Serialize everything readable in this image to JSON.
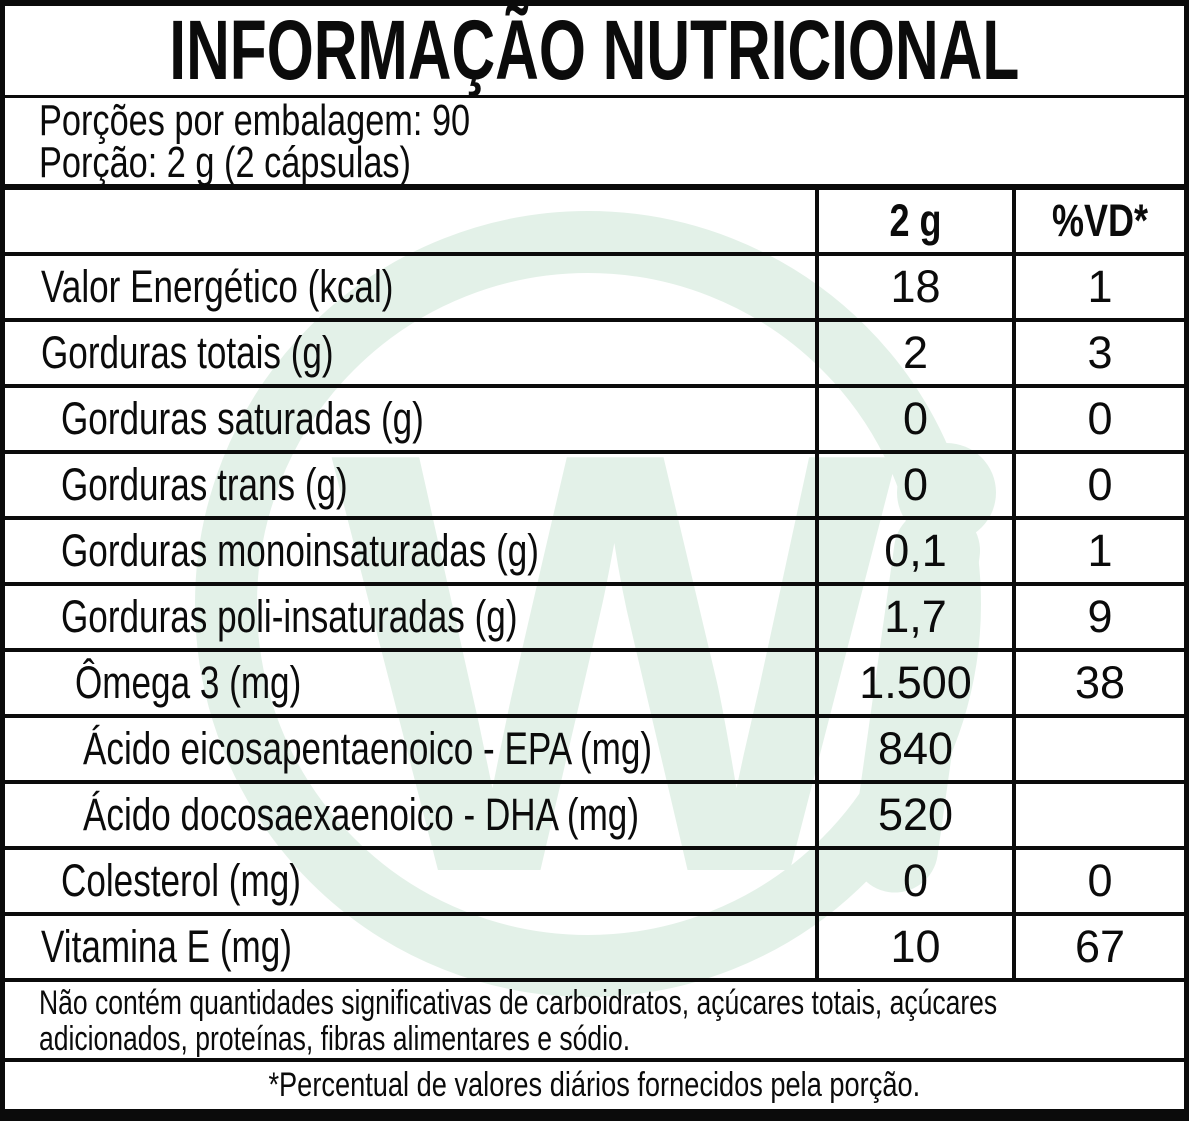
{
  "title": "INFORMAÇÃO NUTRICIONAL",
  "serving_info": {
    "servings_per_package": "Porções por embalagem: 90",
    "serving_size": "Porção: 2 g (2 cápsulas)"
  },
  "table": {
    "columns": [
      "",
      "2 g",
      "%VD*"
    ],
    "rows": [
      {
        "label": "Valor Energético (kcal)",
        "amount": "18",
        "vd": "1",
        "indent": 0
      },
      {
        "label": "Gorduras totais (g)",
        "amount": "2",
        "vd": "3",
        "indent": 0
      },
      {
        "label": "Gorduras saturadas (g)",
        "amount": "0",
        "vd": "0",
        "indent": 1
      },
      {
        "label": "Gorduras trans (g)",
        "amount": "0",
        "vd": "0",
        "indent": 1
      },
      {
        "label": "Gorduras monoinsaturadas (g)",
        "amount": "0,1",
        "vd": "1",
        "indent": 1
      },
      {
        "label": "Gorduras poli-insaturadas (g)",
        "amount": "1,7",
        "vd": "9",
        "indent": 1
      },
      {
        "label": "Ômega 3 (mg)",
        "amount": "1.500",
        "vd": "38",
        "indent": 2
      },
      {
        "label": "Ácido eicosapentaenoico - EPA (mg)",
        "amount": "840",
        "vd": "",
        "indent": 3
      },
      {
        "label": "Ácido docosaexaenoico - DHA (mg)",
        "amount": "520",
        "vd": "",
        "indent": 3
      },
      {
        "label": "Colesterol (mg)",
        "amount": "0",
        "vd": "0",
        "indent": 1
      },
      {
        "label": "Vitamina E (mg)",
        "amount": "10",
        "vd": "67",
        "indent": 0
      }
    ]
  },
  "notes": {
    "no_significant_line1": "Não contém quantidades significativas de carboidratos, açúcares totais, açúcares",
    "no_significant_line2": "adicionados, proteínas, fibras alimentares e sódio.",
    "daily_values": "*Percentual de valores diários fornecidos pela porção."
  },
  "watermark": {
    "letter": "W"
  },
  "theme": {
    "watermark_color": "#e3f1e8",
    "ink_color": "#0b0b0b"
  }
}
